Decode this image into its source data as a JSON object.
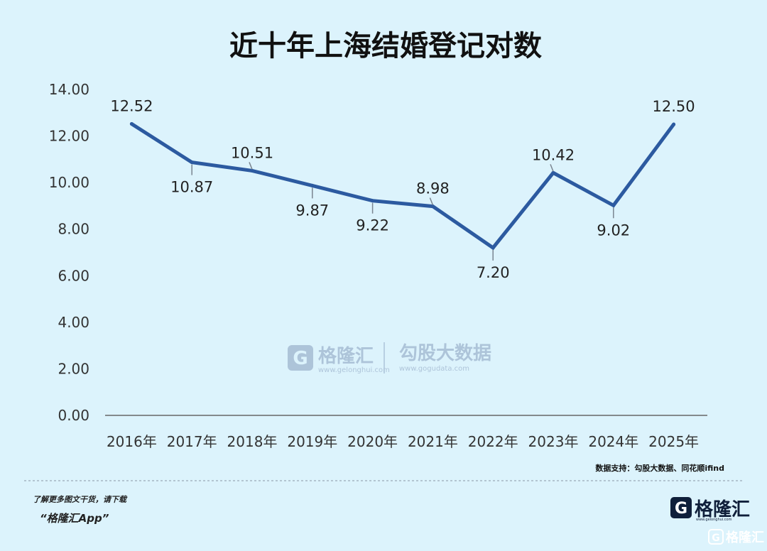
{
  "chart_data": {
    "type": "line",
    "title": "近十年上海结婚登记对数",
    "categories": [
      "2016年",
      "2017年",
      "2018年",
      "2019年",
      "2020年",
      "2021年",
      "2022年",
      "2023年",
      "2024年",
      "2025年"
    ],
    "values": [
      12.52,
      10.87,
      10.51,
      9.87,
      9.22,
      8.98,
      7.2,
      10.42,
      9.02,
      12.5
    ],
    "data_labels": [
      "12.52",
      "10.87",
      "10.51",
      "9.87",
      "9.22",
      "8.98",
      "7.20",
      "10.42",
      "9.02",
      "12.50"
    ],
    "label_side": [
      "above",
      "below",
      "above",
      "below",
      "below",
      "above",
      "below",
      "above",
      "below",
      "above"
    ],
    "y_ticks": [
      "0.00",
      "2.00",
      "4.00",
      "6.00",
      "8.00",
      "10.00",
      "12.00",
      "14.00"
    ],
    "ylim": [
      0,
      14
    ],
    "grid": false,
    "legend": "none",
    "line_color": "#2c5aa0"
  },
  "source": "数据支持：勾股大数据、同花顺ifind",
  "promo": {
    "line1": "了解更多图文干货，请下载",
    "line2": "“格隆汇App”"
  },
  "brand": {
    "name": "格隆汇",
    "url": "www.gelonghui.com",
    "logo_icon": "g-logo-icon"
  },
  "watermark": {
    "brand1": "格隆汇",
    "url1": "www.gelonghui.com",
    "brand2": "勾股大数据",
    "url2": "www.gogudata.com"
  },
  "corner_mark": "格隆汇"
}
